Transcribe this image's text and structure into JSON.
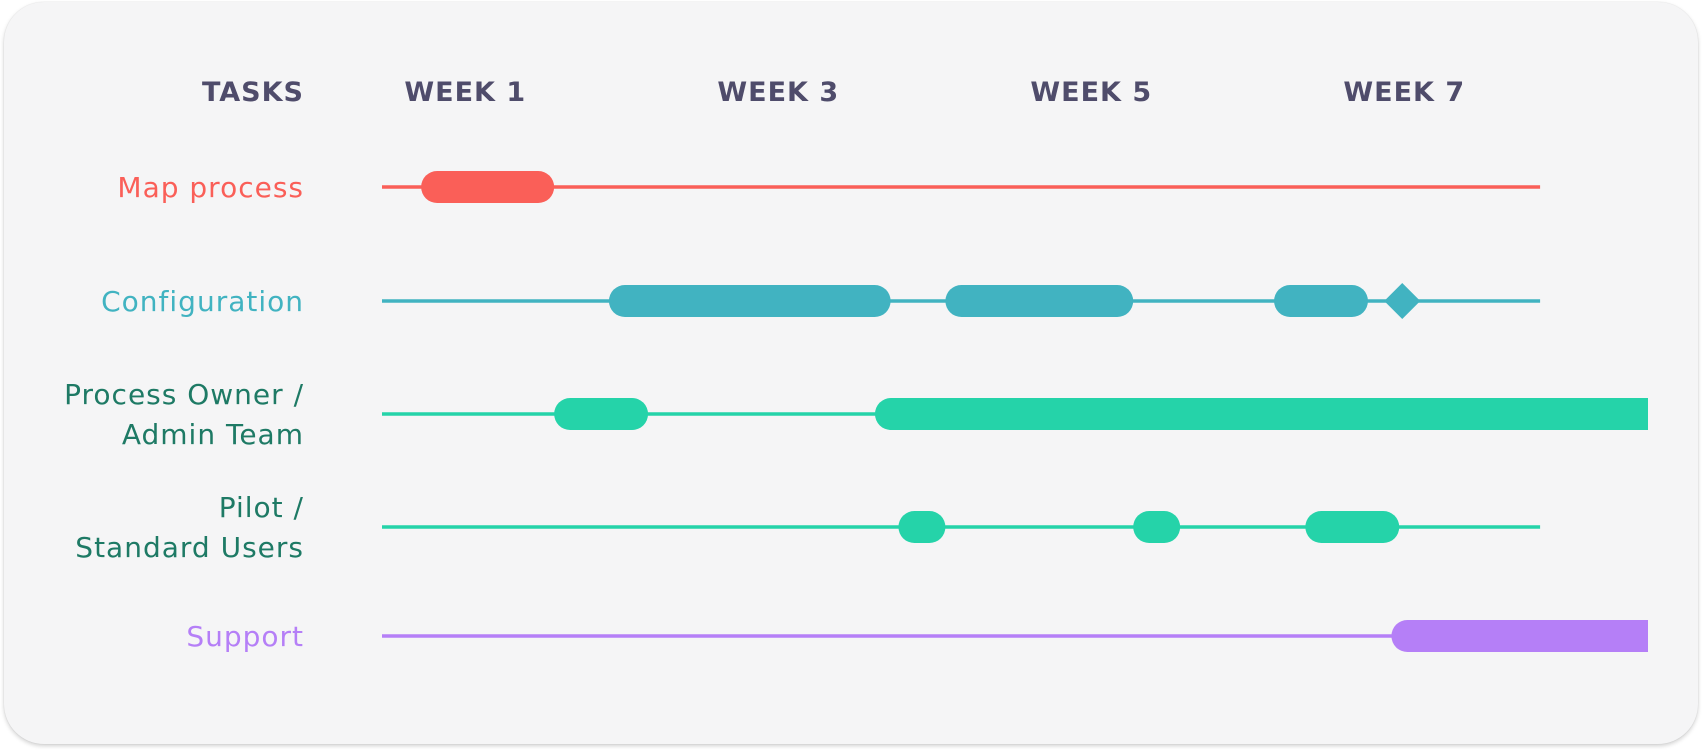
{
  "header": {
    "tasks_label": "TASKS",
    "weeks": [
      "WEEK 1",
      "WEEK 3",
      "WEEK 5",
      "WEEK 7"
    ]
  },
  "timeline": {
    "start_week": 0.5,
    "end_week": 8.5
  },
  "tasks": [
    {
      "id": "map-process",
      "label_lines": [
        "Map process"
      ],
      "color": "#fa5f58",
      "line_end_week": 7.9,
      "bars": [
        [
          0.75,
          1.6
        ]
      ],
      "milestones": []
    },
    {
      "id": "configuration",
      "label_lines": [
        "Configuration"
      ],
      "color": "#41b3c1",
      "line_end_week": 7.9,
      "bars": [
        [
          1.95,
          3.75
        ],
        [
          4.1,
          5.3
        ],
        [
          6.2,
          6.8
        ]
      ],
      "milestones": [
        7.0
      ]
    },
    {
      "id": "process-owner",
      "label_lines": [
        "Process Owner /",
        "Admin Team"
      ],
      "color": "#25d3a9",
      "text_color": "#1e7a65",
      "line_end_week": 7.9,
      "bars": [
        [
          1.6,
          2.2
        ],
        [
          3.65,
          8.61
        ]
      ],
      "milestones": []
    },
    {
      "id": "pilot",
      "label_lines": [
        "Pilot /",
        "Standard Users"
      ],
      "color": "#25d3a9",
      "text_color": "#1e7a65",
      "line_end_week": 7.9,
      "bars": [
        [
          3.8,
          4.1
        ],
        [
          5.3,
          5.6
        ],
        [
          6.4,
          7.0
        ]
      ],
      "milestones": []
    },
    {
      "id": "support",
      "label_lines": [
        "Support"
      ],
      "color": "#b57ff7",
      "line_end_week": 7.9,
      "bars": [
        [
          6.95,
          8.61
        ]
      ],
      "milestones": []
    }
  ]
}
